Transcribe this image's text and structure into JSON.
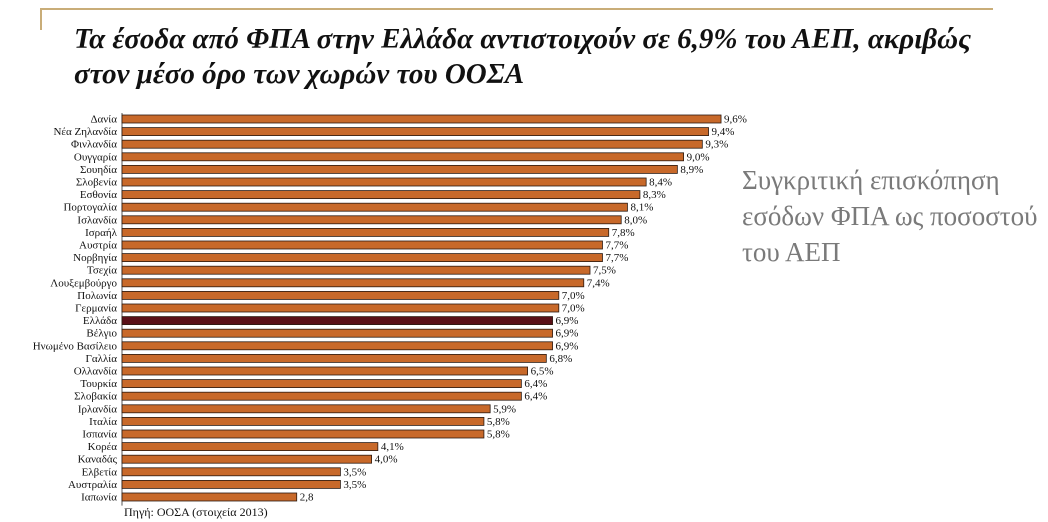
{
  "title": "Τα έσοδα από ΦΠΑ στην Ελλάδα αντιστοιχούν σε 6,9% του ΑΕΠ, ακριβώς στον μέσο όρο των χωρών του ΟΟΣΑ",
  "side_note": "Συγκριτική επισκόπηση εσόδων ΦΠΑ ως ποσοστού του ΑΕΠ",
  "source": "Πηγή: ΟΟΣΑ (στοιχεία 2013)",
  "colors": {
    "bar": "#c8692a",
    "bar_highlight": "#5a1018",
    "bar_outline": "#2b1a12"
  },
  "chart_data": {
    "type": "bar",
    "orientation": "horizontal",
    "title": "Τα έσοδα από ΦΠΑ στην Ελλάδα αντιστοιχούν σε 6,9% του ΑΕΠ, ακριβώς στον μέσο όρο των χωρών του ΟΟΣΑ",
    "xlabel": "",
    "ylabel": "",
    "grid": false,
    "highlight": "Ελλάδα",
    "categories": [
      "Δανία",
      "Νέα Ζηλανδία",
      "Φινλανδία",
      "Ουγγαρία",
      "Σουηδία",
      "Σλοβενία",
      "Εσθονία",
      "Πορτογαλία",
      "Ισλανδία",
      "Ισραήλ",
      "Αυστρία",
      "Νορβηγία",
      "Τσεχία",
      "Λουξεμβούργο",
      "Πολωνία",
      "Γερμανία",
      "Ελλάδα",
      "Βέλγιο",
      "Ηνωμένο Βασίλειο",
      "Γαλλία",
      "Ολλανδία",
      "Τουρκία",
      "Σλοβακία",
      "Ιρλανδία",
      "Ιταλία",
      "Ισπανία",
      "Κορέα",
      "Καναδάς",
      "Ελβετία",
      "Αυστραλία",
      "Ιαπωνία"
    ],
    "values": [
      9.6,
      9.4,
      9.3,
      9.0,
      8.9,
      8.4,
      8.3,
      8.1,
      8.0,
      7.8,
      7.7,
      7.7,
      7.5,
      7.4,
      7.0,
      7.0,
      6.9,
      6.9,
      6.9,
      6.8,
      6.5,
      6.4,
      6.4,
      5.9,
      5.8,
      5.8,
      4.1,
      4.0,
      3.5,
      3.5,
      2.8
    ],
    "value_labels": [
      "9,6%",
      "9,4%",
      "9,3%",
      "9,0%",
      "8,9%",
      "8,4%",
      "8,3%",
      "8,1%",
      "8,0%",
      "7,8%",
      "7,7%",
      "7,7%",
      "7,5%",
      "7,4%",
      "7,0%",
      "7,0%",
      "6,9%",
      "6,9%",
      "6,9%",
      "6,8%",
      "6,5%",
      "6,4%",
      "6,4%",
      "5,9%",
      "5,8%",
      "5,8%",
      "4,1%",
      "4,0%",
      "3,5%",
      "3,5%",
      "2,8"
    ]
  }
}
